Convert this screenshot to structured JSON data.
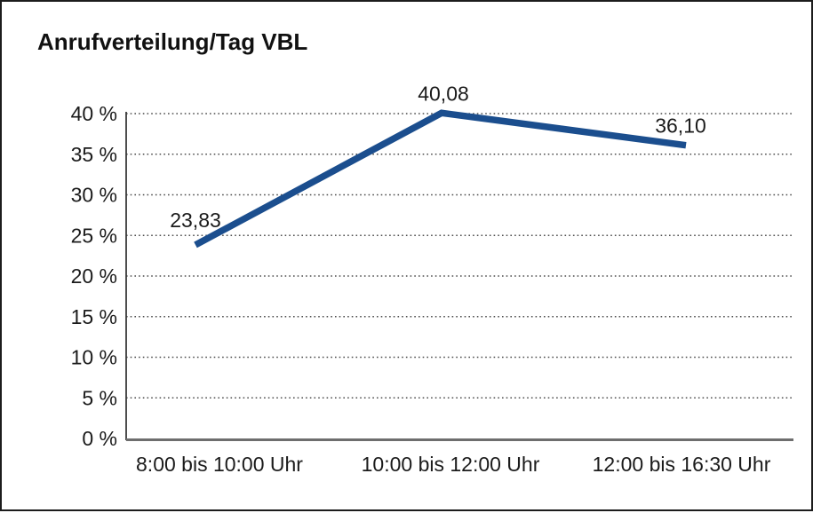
{
  "window": {
    "background_color": "#ffffff",
    "border_color": "#1c1c1c"
  },
  "chart_data": {
    "type": "line",
    "title": "Anrufverteilung/Tag VBL",
    "categories": [
      "8:00 bis 10:00 Uhr",
      "10:00 bis 12:00 Uhr",
      "12:00 bis 16:30 Uhr"
    ],
    "values": [
      23.83,
      40.08,
      36.1
    ],
    "value_labels": [
      "23,83",
      "40,08",
      "36,10"
    ],
    "xlabel": "",
    "ylabel": "",
    "ylim": [
      0,
      40
    ],
    "ytick_step": 5,
    "ytick_labels": [
      "0 %",
      "5 %",
      "10 %",
      "15 %",
      "20 %",
      "25 %",
      "30 %",
      "35 %",
      "40 %"
    ],
    "grid": "horizontal-dotted",
    "legend": "none",
    "line_color": "#1B4E8E",
    "text_color": "#1b1b1b",
    "grid_color": "#4d4d4d",
    "axis_color": "#3a3a3a",
    "baseline_color": "#6e6e6e"
  }
}
